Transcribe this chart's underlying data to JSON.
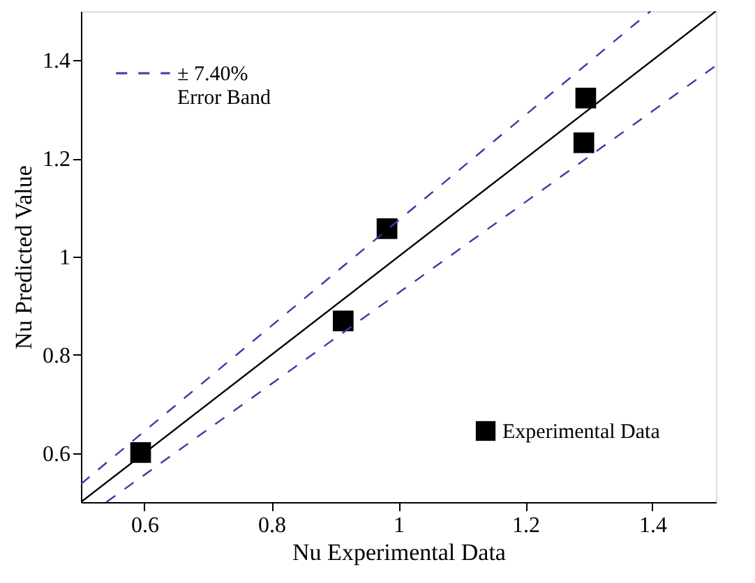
{
  "chart_data": {
    "type": "scatter",
    "xlabel": "Nu Experimental Data",
    "ylabel": "Nu Predicted Value",
    "xlim": [
      0.5,
      1.5
    ],
    "ylim": [
      0.5,
      1.5
    ],
    "xticks": [
      0.6,
      0.8,
      1,
      1.2,
      1.4
    ],
    "yticks": [
      0.6,
      0.8,
      1,
      1.2,
      1.4
    ],
    "grid": false,
    "legend": "top left",
    "series": [
      {
        "name": "Experimental Data",
        "type": "scatter",
        "marker": "square",
        "color": "#000000",
        "x": [
          0.594,
          0.913,
          0.982,
          1.295,
          1.292
        ],
        "values": [
          0.601,
          0.869,
          1.057,
          1.323,
          1.232
        ]
      },
      {
        "type": "line",
        "color": "#000000",
        "line_style": "solid",
        "x": [
          0.5,
          1.5
        ],
        "values": [
          0.5,
          1.5
        ]
      },
      {
        "name": "± 7.40%\nError Band",
        "type": "line",
        "color": "#3a3aa8",
        "line_style": "dashed",
        "x": [
          0.5,
          1.397
        ],
        "values": [
          0.537,
          1.5
        ]
      },
      {
        "type": "line",
        "color": "#3a3aa8",
        "line_style": "dashed",
        "x": [
          0.54,
          1.5
        ],
        "values": [
          0.5,
          1.389
        ]
      }
    ]
  }
}
